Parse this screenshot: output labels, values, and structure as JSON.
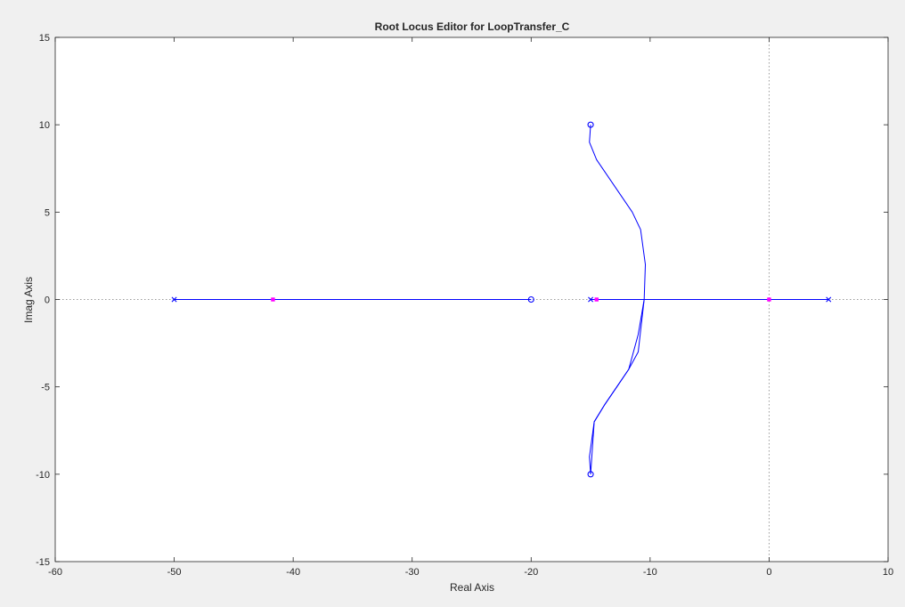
{
  "chart_data": {
    "type": "scatter",
    "title": "Root Locus Editor for LoopTransfer_C",
    "xlabel": "Real Axis",
    "ylabel": "Imag Axis",
    "xlim": [
      -60,
      10
    ],
    "ylim": [
      -15,
      15
    ],
    "xticks": [
      -60,
      -50,
      -40,
      -30,
      -20,
      -10,
      0,
      10
    ],
    "yticks": [
      -15,
      -10,
      -5,
      0,
      5,
      10,
      15
    ],
    "xtick_labels": [
      "-60",
      "-50",
      "-40",
      "-30",
      "-20",
      "-10",
      "0",
      "10"
    ],
    "ytick_labels": [
      "-15",
      "-10",
      "-5",
      "0",
      "5",
      "10",
      "15"
    ],
    "grid": false,
    "zero_lines": true,
    "colors": {
      "locus": "#0000ff",
      "closed_loop_poles": "#ff00ff",
      "zero_line": "#9a9a9a",
      "axes_background": "#ffffff",
      "figure_background": "#f0f0f0"
    },
    "poles": [
      {
        "re": -50,
        "im": 0
      },
      {
        "re": -15,
        "im": 0
      },
      {
        "re": 5,
        "im": 0
      }
    ],
    "zeros": [
      {
        "re": -20,
        "im": 0
      },
      {
        "re": -15,
        "im": 10
      },
      {
        "re": -15,
        "im": -10
      }
    ],
    "closed_loop_poles": [
      {
        "re": -41.7,
        "im": 0
      },
      {
        "re": -14.5,
        "im": 0
      },
      {
        "re": 0,
        "im": 0
      }
    ],
    "locus_branches": [
      {
        "x": [
          -50,
          -20
        ],
        "y": [
          0,
          0
        ]
      },
      {
        "x": [
          5,
          -15
        ],
        "y": [
          0,
          0
        ]
      },
      {
        "x": [
          -15,
          -15.1,
          -14.5,
          -13.5,
          -12.5,
          -11.5,
          -10.8,
          -10.4,
          -10.5,
          -11.0,
          -11.8,
          -12.8,
          -13.8,
          -14.7,
          -15.1,
          -15
        ],
        "y": [
          10,
          9.0,
          8.0,
          7.0,
          6.0,
          5.0,
          4.0,
          2.0,
          0,
          -2.0,
          -4.0,
          -5.0,
          -6.0,
          -7.0,
          -9.0,
          -10
        ]
      },
      {
        "x": [
          -15,
          -14.7,
          -13.8,
          -12.8,
          -11.8,
          -11.0,
          -10.5
        ],
        "y": [
          -10,
          -7.0,
          -6.0,
          -5.0,
          -4.0,
          -3.0,
          0
        ]
      }
    ]
  }
}
